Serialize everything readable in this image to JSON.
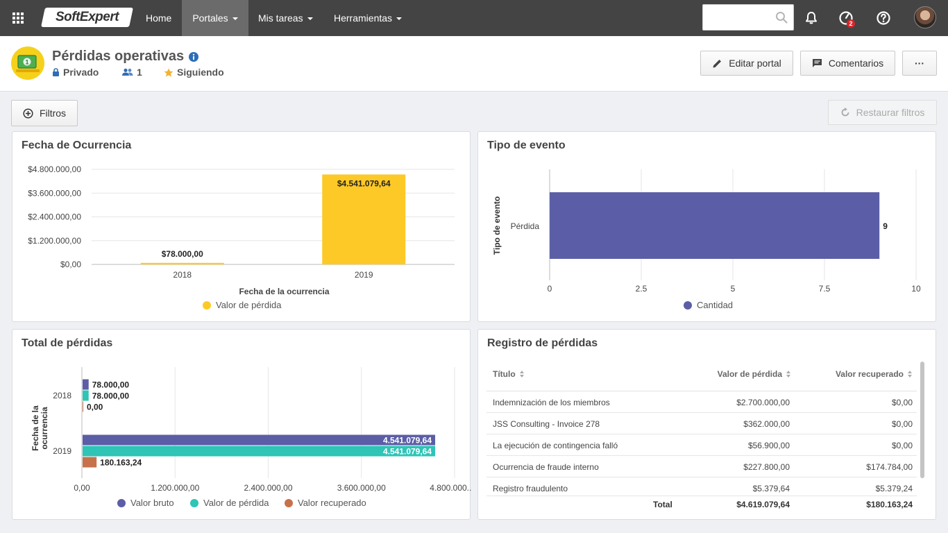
{
  "app": {
    "logo_text": "SoftExpert",
    "nav": {
      "home": "Home",
      "portales": "Portales",
      "mis_tareas": "Mis tareas",
      "herramientas": "Herramientas"
    },
    "search_placeholder": "",
    "notif_badge": "2"
  },
  "portal": {
    "title": "Pérdidas operativas",
    "privacy": "Privado",
    "members": "1",
    "following": "Siguiendo",
    "edit_label": "Editar portal",
    "comments_label": "Comentarios",
    "more_label": "···"
  },
  "filters": {
    "filter_label": "Filtros",
    "restore_label": "Restaurar filtros"
  },
  "colors": {
    "yellow": "#fdc927",
    "indigo": "#5b5ea6",
    "teal": "#2ec4b6",
    "rust": "#c7714a",
    "topbar": "#444444"
  },
  "chart_data": [
    {
      "type": "bar",
      "title": "Fecha de Ocurrencia",
      "categories": [
        "2018",
        "2019"
      ],
      "series": [
        {
          "name": "Valor de pérdida",
          "values": [
            78000.0,
            4541079.64
          ]
        }
      ],
      "data_labels": [
        "$78.000,00",
        "$4.541.079,64"
      ],
      "y_ticks": [
        "$0,00",
        "$1.200.000,00",
        "$2.400.000,00",
        "$3.600.000,00",
        "$4.800.000,00"
      ],
      "ylim": [
        0,
        4800000
      ],
      "xlabel": "Fecha de la ocurrencia",
      "ylabel": "",
      "legend": [
        "Valor de pérdida"
      ]
    },
    {
      "type": "bar",
      "orientation": "horizontal",
      "title": "Tipo de evento",
      "categories": [
        "Pérdida"
      ],
      "series": [
        {
          "name": "Cantidad",
          "values": [
            9
          ]
        }
      ],
      "data_labels": [
        "9"
      ],
      "x_ticks": [
        "0",
        "2.5",
        "5",
        "7.5",
        "10"
      ],
      "xlim": [
        0,
        10
      ],
      "ylabel": "Tipo de evento",
      "legend": [
        "Cantidad"
      ]
    },
    {
      "type": "bar",
      "orientation": "horizontal",
      "title": "Total de pérdidas",
      "categories": [
        "2018",
        "2019"
      ],
      "series": [
        {
          "name": "Valor bruto",
          "values": [
            78000.0,
            4541079.64
          ],
          "labels": [
            "78.000,00",
            "4.541.079,64"
          ]
        },
        {
          "name": "Valor de pérdida",
          "values": [
            78000.0,
            4541079.64
          ],
          "labels": [
            "78.000,00",
            "4.541.079,64"
          ]
        },
        {
          "name": "Valor recuperado",
          "values": [
            0.0,
            180163.24
          ],
          "labels": [
            "0,00",
            "180.163,24"
          ]
        }
      ],
      "x_ticks": [
        "0,00",
        "1.200.000,00",
        "2.400.000,00",
        "3.600.000,00",
        "4.800.000..."
      ],
      "xlim": [
        0,
        4800000
      ],
      "ylabel": "Fecha de la ocurrencia",
      "ylabel_lines": [
        "Fecha de la",
        "ocurrencia"
      ],
      "legend": [
        "Valor bruto",
        "Valor de pérdida",
        "Valor recuperado"
      ]
    }
  ],
  "registro": {
    "title": "Registro de pérdidas",
    "columns": [
      "Título",
      "Valor de pérdida",
      "Valor recuperado"
    ],
    "rows": [
      [
        "Indemnización de los miembros",
        "$2.700.000,00",
        "$0,00"
      ],
      [
        "JSS Consulting - Invoice 278",
        "$362.000,00",
        "$0,00"
      ],
      [
        "La ejecución de contingencia falló",
        "$56.900,00",
        "$0,00"
      ],
      [
        "Ocurrencia de fraude interno",
        "$227.800,00",
        "$174.784,00"
      ],
      [
        "Registro fraudulento",
        "$5.379,64",
        "$5.379,24"
      ]
    ],
    "total_label": "Total",
    "total_loss": "$4.619.079,64",
    "total_recovered": "$180.163,24"
  }
}
